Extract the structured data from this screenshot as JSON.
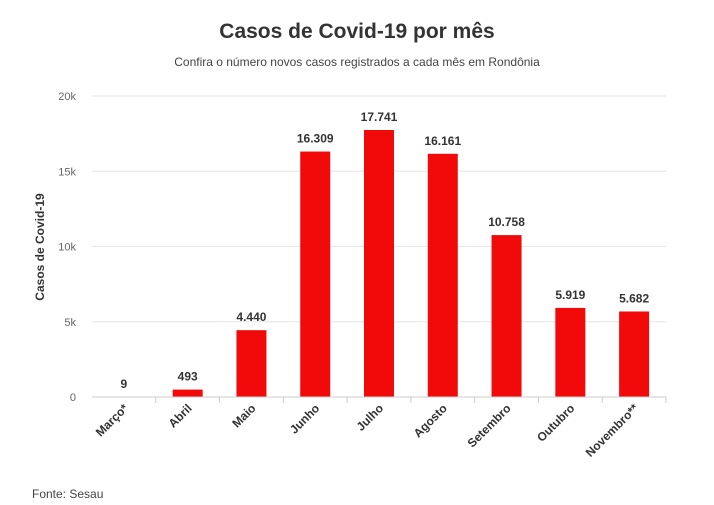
{
  "chart_data": {
    "type": "bar",
    "title": "Casos de Covid-19 por mês",
    "subtitle": "Confira o número novos casos registrados a cada mês em Rondônia",
    "xlabel": "",
    "ylabel": "Casos de Covid-19",
    "categories": [
      "Março*",
      "Abril",
      "Maio",
      "Junho",
      "Julho",
      "Agosto",
      "Setembro",
      "Outubro",
      "Novembro**"
    ],
    "values": [
      9,
      493,
      4440,
      16309,
      17741,
      16161,
      10758,
      5919,
      5682
    ],
    "data_labels": [
      "9",
      "493",
      "4.440",
      "16.309",
      "17.741",
      "16.161",
      "10.758",
      "5.919",
      "5.682"
    ],
    "ylim": [
      0,
      20000
    ],
    "yticks": [
      0,
      5000,
      10000,
      15000,
      20000
    ],
    "ytick_labels": [
      "0",
      "5k",
      "10k",
      "15k",
      "20k"
    ],
    "grid": true,
    "bar_color": "#f20a0a",
    "source": "Fonte: Sesau"
  }
}
